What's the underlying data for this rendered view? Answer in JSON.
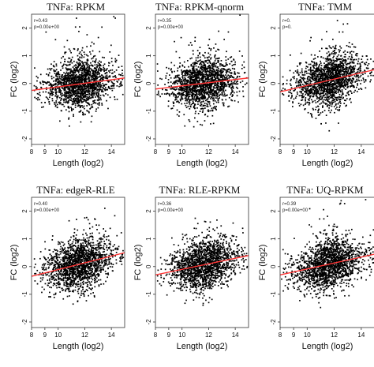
{
  "chart_data": [
    {
      "type": "scatter",
      "title": "TNFa: RPKM",
      "annotations": [
        "r=0.43",
        "p=0.00e+00"
      ],
      "xlabel": "Length (log2)",
      "ylabel": "FC (log2)",
      "xticks": [
        8,
        9,
        10,
        12,
        14
      ],
      "yticks": [
        -2,
        -1,
        0,
        1,
        2
      ],
      "xlim": [
        8,
        15
      ],
      "ylim": [
        -2.2,
        2.5
      ],
      "trend_line": {
        "x": [
          8,
          15
        ],
        "y": [
          -0.25,
          0.2
        ],
        "color": "#ff3333"
      }
    },
    {
      "type": "scatter",
      "title": "TNFa: RPKM-qnorm",
      "annotations": [
        "r=0.35",
        "p=0.00e+00"
      ],
      "xlabel": "Length (log2)",
      "ylabel": "FC (log2)",
      "xticks": [
        8,
        9,
        10,
        12,
        14
      ],
      "yticks": [
        -2,
        -1,
        0,
        1,
        2
      ],
      "xlim": [
        8,
        15
      ],
      "ylim": [
        -2.2,
        2.5
      ],
      "trend_line": {
        "x": [
          8,
          15
        ],
        "y": [
          -0.2,
          0.2
        ],
        "color": "#ff3333"
      }
    },
    {
      "type": "scatter",
      "title": "TNFa: TMM",
      "annotations": [
        "r=0.",
        "p=0."
      ],
      "xlabel": "Length (log2)",
      "ylabel": "FC (log2)",
      "xticks": [
        8,
        9,
        10,
        12,
        14
      ],
      "yticks": [
        -2,
        -1,
        0,
        1,
        2
      ],
      "xlim": [
        8,
        15
      ],
      "ylim": [
        -2.2,
        2.5
      ],
      "trend_line": {
        "x": [
          8,
          15
        ],
        "y": [
          -0.3,
          0.5
        ],
        "color": "#ff3333"
      }
    },
    {
      "type": "scatter",
      "title": "TNFa: edgeR-RLE",
      "annotations": [
        "r=0.40",
        "p=0.00e+00"
      ],
      "xlabel": "Length (log2)",
      "ylabel": "FC (log2)",
      "xticks": [
        8,
        9,
        10,
        12,
        14
      ],
      "yticks": [
        -2,
        -1,
        0,
        1,
        2
      ],
      "xlim": [
        8,
        15
      ],
      "ylim": [
        -2.2,
        2.5
      ],
      "trend_line": {
        "x": [
          8,
          15
        ],
        "y": [
          -0.35,
          0.5
        ],
        "color": "#ff3333"
      }
    },
    {
      "type": "scatter",
      "title": "TNFa: RLE-RPKM",
      "annotations": [
        "r=0.36",
        "p=0.00e+00"
      ],
      "xlabel": "Length (log2)",
      "ylabel": "FC (log2)",
      "xticks": [
        8,
        9,
        10,
        12,
        14
      ],
      "yticks": [
        -2,
        -1,
        0,
        1,
        2
      ],
      "xlim": [
        8,
        15
      ],
      "ylim": [
        -2.2,
        2.5
      ],
      "trend_line": {
        "x": [
          8,
          15
        ],
        "y": [
          -0.3,
          0.4
        ],
        "color": "#ff3333"
      }
    },
    {
      "type": "scatter",
      "title": "TNFa: UQ-RPKM",
      "annotations": [
        "r=0.39",
        "p=0.00e+00"
      ],
      "xlabel": "Length (log2)",
      "ylabel": "FC (log2)",
      "xticks": [
        8,
        9,
        10,
        12,
        14
      ],
      "yticks": [
        -2,
        -1,
        0,
        1,
        2
      ],
      "xlim": [
        8,
        15
      ],
      "ylim": [
        -2.2,
        2.5
      ],
      "trend_line": {
        "x": [
          8,
          15
        ],
        "y": [
          -0.3,
          0.45
        ],
        "color": "#ff3333"
      }
    }
  ],
  "colors": {
    "points": "#000000",
    "trend": "#ff3333",
    "frame": "#333333"
  }
}
